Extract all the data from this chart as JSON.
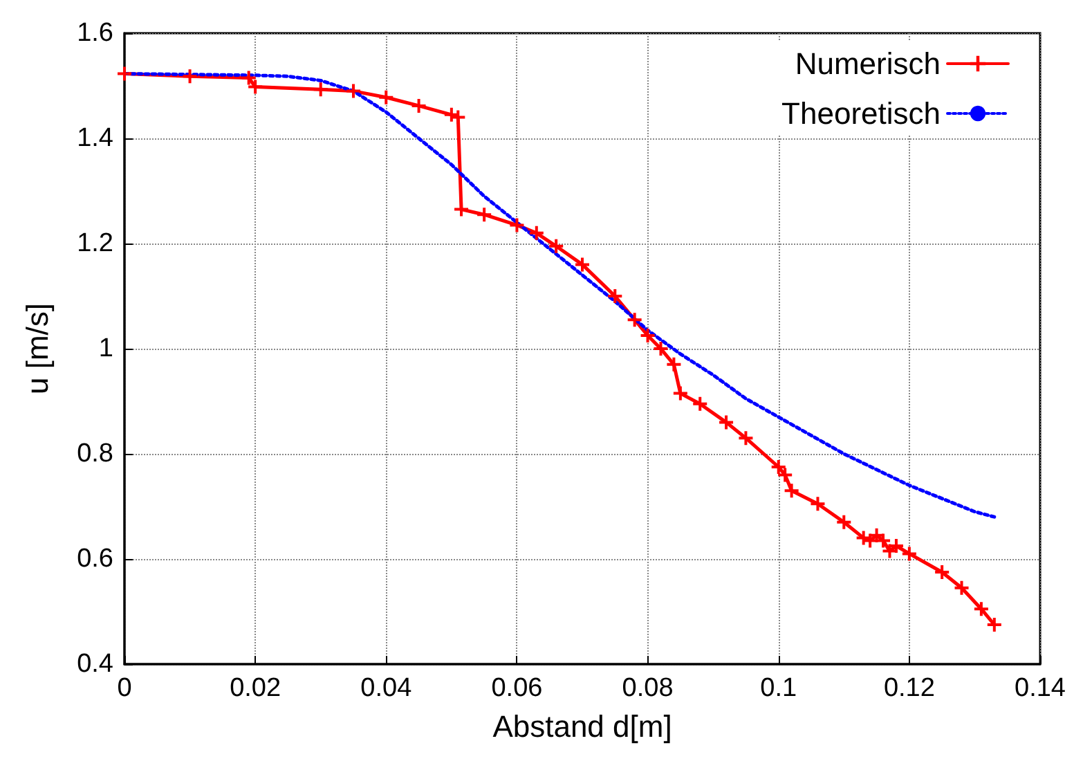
{
  "chart_data": {
    "type": "line",
    "xlabel": "Abstand d[m]",
    "ylabel": "u [m/s]",
    "xlim": [
      0,
      0.14
    ],
    "xticks": [
      0,
      0.02,
      0.04,
      0.06,
      0.08,
      0.1,
      0.12,
      0.14
    ],
    "ylim": [
      0.4,
      1.6
    ],
    "yticks": [
      0.4,
      0.6,
      0.8,
      1,
      1.2,
      1.4,
      1.6
    ],
    "grid": true,
    "legend": "top right",
    "series": [
      {
        "name": "Numerisch",
        "color": "#ff0000",
        "marker": "cross",
        "line_style": "solid",
        "x": [
          0,
          0.01,
          0.019,
          0.02,
          0.03,
          0.035,
          0.04,
          0.045,
          0.05,
          0.051,
          0.0515,
          0.055,
          0.06,
          0.063,
          0.066,
          0.07,
          0.075,
          0.078,
          0.08,
          0.082,
          0.084,
          0.085,
          0.088,
          0.092,
          0.095,
          0.1,
          0.101,
          0.102,
          0.106,
          0.11,
          0.113,
          0.114,
          0.115,
          0.116,
          0.117,
          0.118,
          0.12,
          0.125,
          0.128,
          0.131,
          0.133
        ],
        "values": [
          1.523,
          1.518,
          1.515,
          1.498,
          1.493,
          1.49,
          1.478,
          1.462,
          1.445,
          1.44,
          1.265,
          1.255,
          1.235,
          1.22,
          1.195,
          1.16,
          1.1,
          1.055,
          1.025,
          1.0,
          0.97,
          0.915,
          0.895,
          0.86,
          0.83,
          0.775,
          0.76,
          0.73,
          0.705,
          0.67,
          0.64,
          0.635,
          0.645,
          0.635,
          0.615,
          0.625,
          0.61,
          0.575,
          0.545,
          0.505,
          0.475
        ]
      },
      {
        "name": "Theoretisch",
        "color": "#0000ff",
        "marker": "none",
        "line_style": "dotted",
        "x": [
          0,
          0.02,
          0.025,
          0.03,
          0.035,
          0.04,
          0.045,
          0.05,
          0.055,
          0.06,
          0.065,
          0.07,
          0.075,
          0.08,
          0.085,
          0.09,
          0.095,
          0.1,
          0.105,
          0.11,
          0.115,
          0.12,
          0.125,
          0.13,
          0.133
        ],
        "values": [
          1.523,
          1.52,
          1.518,
          1.51,
          1.49,
          1.45,
          1.4,
          1.35,
          1.29,
          1.24,
          1.19,
          1.14,
          1.09,
          1.035,
          0.99,
          0.95,
          0.905,
          0.87,
          0.835,
          0.8,
          0.77,
          0.74,
          0.715,
          0.69,
          0.68
        ]
      }
    ]
  }
}
